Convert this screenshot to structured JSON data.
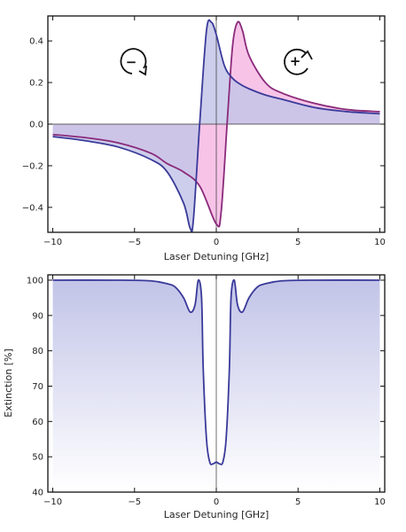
{
  "colors": {
    "blue_line": "#3a3a9a",
    "magenta_line": "#8a2a7a",
    "blue_fill": "#c4c6e8",
    "pink_fill": "#f7c4e8",
    "frame": "#111111"
  },
  "chart_data": [
    {
      "type": "line",
      "title": "",
      "xlabel": "Laser Detuning  [GHz]",
      "ylabel": "",
      "xlim": [
        -10.3,
        10.3
      ],
      "ylim": [
        -0.52,
        0.52
      ],
      "xticks": [
        -10,
        -5,
        0,
        5,
        10
      ],
      "xtick_labels": [
        "−10",
        "−5",
        "0",
        "5",
        "10"
      ],
      "yticks": [
        0.4,
        0.2,
        0.0,
        -0.2,
        -0.4
      ],
      "ytick_labels": [
        "0.4",
        "0.2",
        "0.0",
        "−0.2",
        "−0.4"
      ],
      "grid": false,
      "series": [
        {
          "color": "blue",
          "x": [
            -10,
            -8,
            -6,
            -4,
            -3,
            -2,
            -1.6,
            -1.4,
            -1,
            -0.6,
            -0.3,
            0,
            0.5,
            1,
            1.5,
            2,
            3,
            4,
            6,
            8,
            10
          ],
          "y": [
            -0.06,
            -0.08,
            -0.11,
            -0.17,
            -0.23,
            -0.38,
            -0.5,
            -0.46,
            0.02,
            0.45,
            0.49,
            0.43,
            0.28,
            0.22,
            0.19,
            0.17,
            0.14,
            0.12,
            0.08,
            0.06,
            0.05
          ]
        },
        {
          "color": "magenta",
          "x": [
            -10,
            -8,
            -6,
            -4,
            -3,
            -2,
            -1,
            0,
            0.3,
            0.7,
            1.0,
            1.3,
            1.6,
            2,
            3,
            4,
            6,
            8,
            10
          ],
          "y": [
            -0.05,
            -0.065,
            -0.09,
            -0.14,
            -0.19,
            -0.23,
            -0.3,
            -0.48,
            -0.42,
            0.05,
            0.38,
            0.49,
            0.45,
            0.33,
            0.2,
            0.15,
            0.1,
            0.07,
            0.06
          ]
        }
      ],
      "annotations": [
        {
          "label": "−",
          "note": "clockwise rotation arrow"
        },
        {
          "label": "+",
          "note": "counter-clockwise rotation arrow"
        }
      ]
    },
    {
      "type": "area",
      "title": "",
      "xlabel": "Laser Detuning  [GHz]",
      "ylabel": "Extinction  [%]",
      "xlim": [
        -10.3,
        10.3
      ],
      "ylim": [
        40,
        101.5
      ],
      "xticks": [
        -10,
        -5,
        0,
        5,
        10
      ],
      "xtick_labels": [
        "−10",
        "−5",
        "0",
        "5",
        "10"
      ],
      "yticks": [
        40,
        50,
        60,
        70,
        80,
        90,
        100
      ],
      "ytick_labels": [
        "40",
        "50",
        "60",
        "70",
        "80",
        "90",
        "100"
      ],
      "grid": false,
      "series": [
        {
          "color": "blue",
          "x": [
            -10,
            -6,
            -4,
            -3,
            -2.5,
            -2,
            -1.6,
            -1.3,
            -1.1,
            -0.9,
            -0.8,
            -0.6,
            -0.4,
            -0.2,
            0,
            0.2,
            0.4,
            0.6,
            0.8,
            0.9,
            1.1,
            1.3,
            1.6,
            2,
            2.5,
            3,
            4,
            6,
            10
          ],
          "y": [
            100,
            100,
            99.8,
            99,
            98,
            95,
            91,
            93,
            100,
            95,
            75,
            55,
            48.5,
            48,
            48.5,
            48,
            48.5,
            55,
            75,
            95,
            100,
            93,
            91,
            95,
            98,
            99,
            99.8,
            100,
            100
          ]
        }
      ]
    }
  ]
}
